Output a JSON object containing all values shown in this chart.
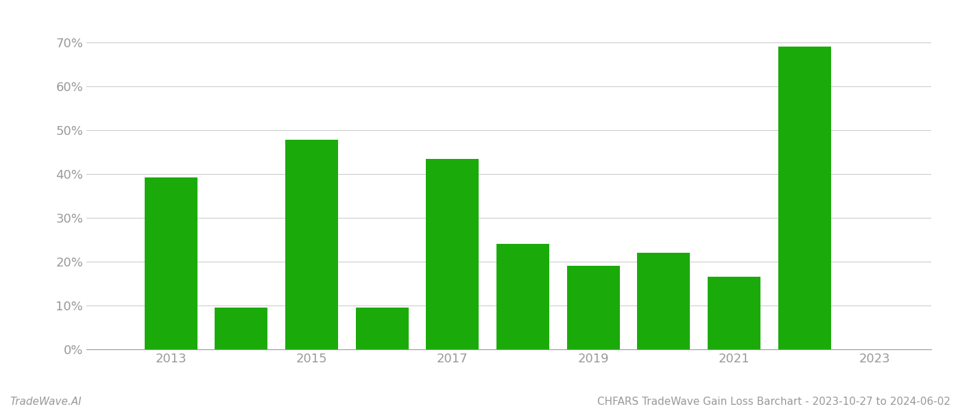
{
  "years": [
    2013,
    2014,
    2015,
    2016,
    2017,
    2018,
    2019,
    2020,
    2021,
    2022
  ],
  "values": [
    0.392,
    0.095,
    0.478,
    0.096,
    0.435,
    0.24,
    0.191,
    0.22,
    0.165,
    0.69
  ],
  "bar_color": "#1aab0a",
  "background_color": "#ffffff",
  "grid_color": "#cccccc",
  "axis_color": "#999999",
  "tick_label_color": "#999999",
  "footer_left": "TradeWave.AI",
  "footer_right": "CHFARS TradeWave Gain Loss Barchart - 2023-10-27 to 2024-06-02",
  "ylim": [
    0,
    0.75
  ],
  "yticks": [
    0.0,
    0.1,
    0.2,
    0.3,
    0.4,
    0.5,
    0.6,
    0.7
  ],
  "xtick_labels": [
    "2013",
    "2015",
    "2017",
    "2019",
    "2021",
    "2023"
  ],
  "xtick_positions": [
    2013,
    2015,
    2017,
    2019,
    2021,
    2023
  ],
  "xlim": [
    2011.8,
    2023.8
  ],
  "bar_width": 0.75,
  "tick_fontsize": 13,
  "footer_fontsize": 11
}
